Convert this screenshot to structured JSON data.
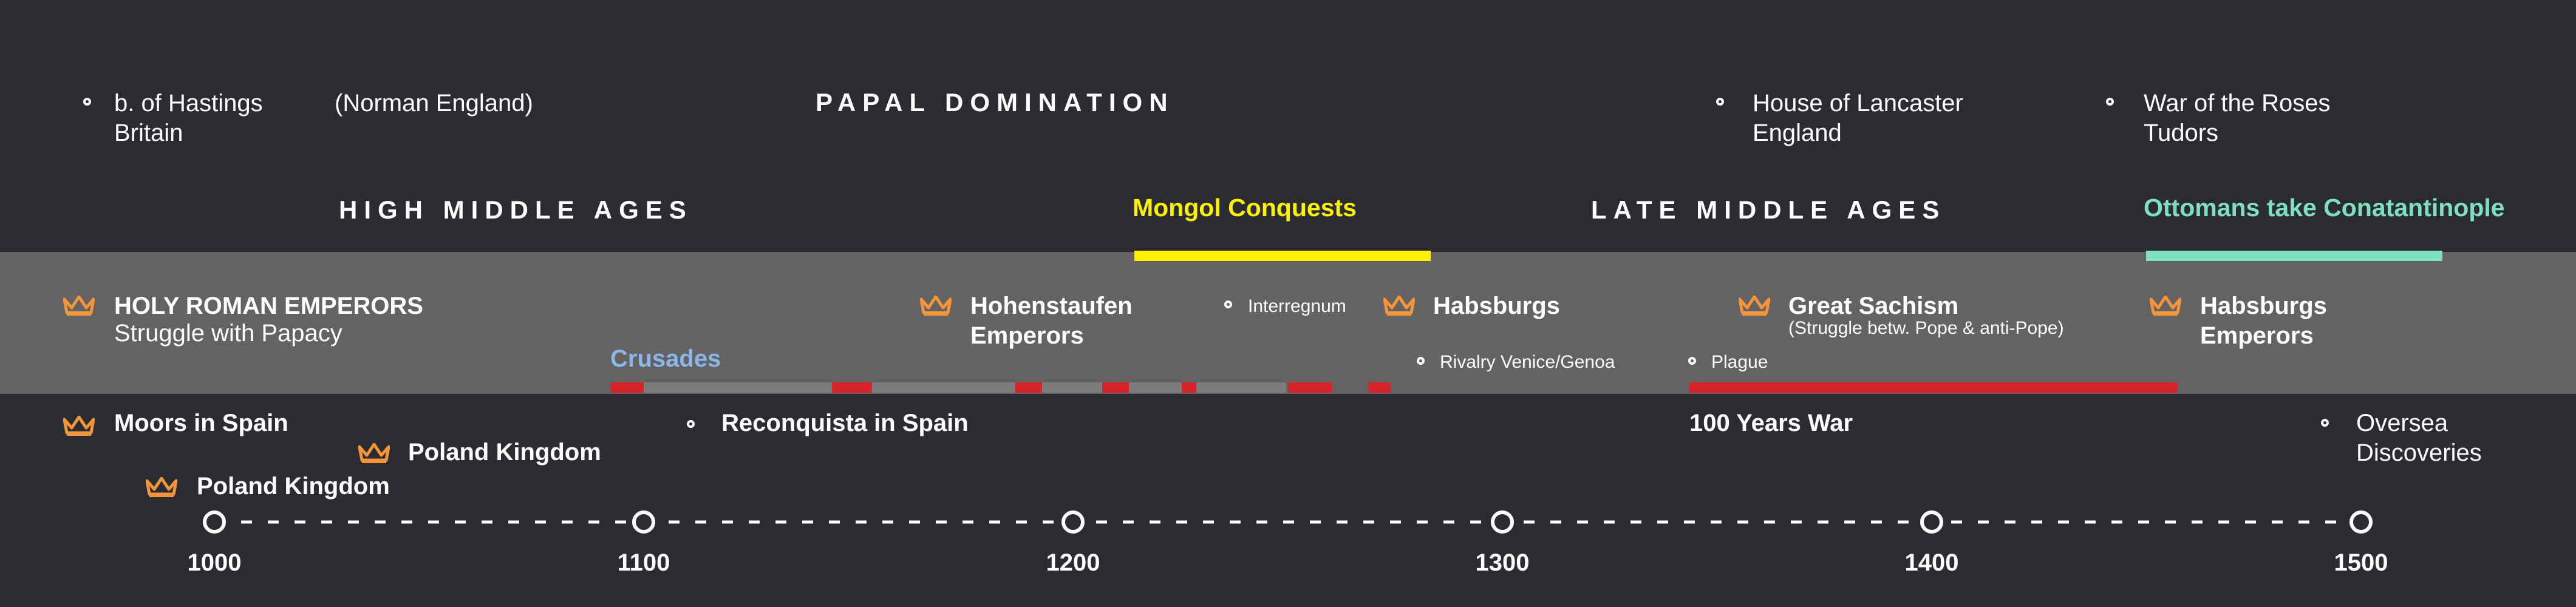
{
  "colors": {
    "background": "#2b2c31",
    "band": "#646263",
    "mongol": "#fff200",
    "ottoman": "#7fe0c0",
    "crusades": "#8ab6e8",
    "red": "#d8232a",
    "crown": "#f3963a"
  },
  "top": {
    "hastings_line1": "b. of Hastings",
    "hastings_line2": "Britain",
    "norman": "(Norman England)",
    "papal": "PAPAL DOMINATION",
    "lancaster_line1": "House of Lancaster",
    "lancaster_line2": "England",
    "roses_line1": "War of the Roses",
    "roses_line2": "Tudors"
  },
  "eras": {
    "high": "HIGH MIDDLE AGES",
    "mongol": "Mongol Conquests",
    "late": "LATE MIDDLE AGES",
    "ottoman": "Ottomans take Conatantinople"
  },
  "band": {
    "hre_line1": "HOLY ROMAN EMPERORS",
    "hre_line2": "Struggle with Papacy",
    "crusades": "Crusades",
    "hohen_line1": "Hohenstaufen",
    "hohen_line2": "Emperors",
    "interregnum": "Interregnum",
    "habsburgs": "Habsburgs",
    "rivalry": "Rivalry Venice/Genoa",
    "great_line1": "Great Sachism",
    "great_line2": "(Struggle betw. Pope & anti-Pope)",
    "plague": "Plague",
    "habs2_line1": "Habsburgs",
    "habs2_line2": "Emperors"
  },
  "lower": {
    "moors": "Moors in Spain",
    "poland1": "Poland Kingdom",
    "poland2": "Poland Kingdom",
    "reconquista": "Reconquista in Spain",
    "hundred": "100 Years War",
    "oversea_line1": "Oversea",
    "oversea_line2": "Discoveries"
  },
  "axis": {
    "labels": [
      "1000",
      "1100",
      "1200",
      "1300",
      "1400",
      "1500"
    ]
  }
}
